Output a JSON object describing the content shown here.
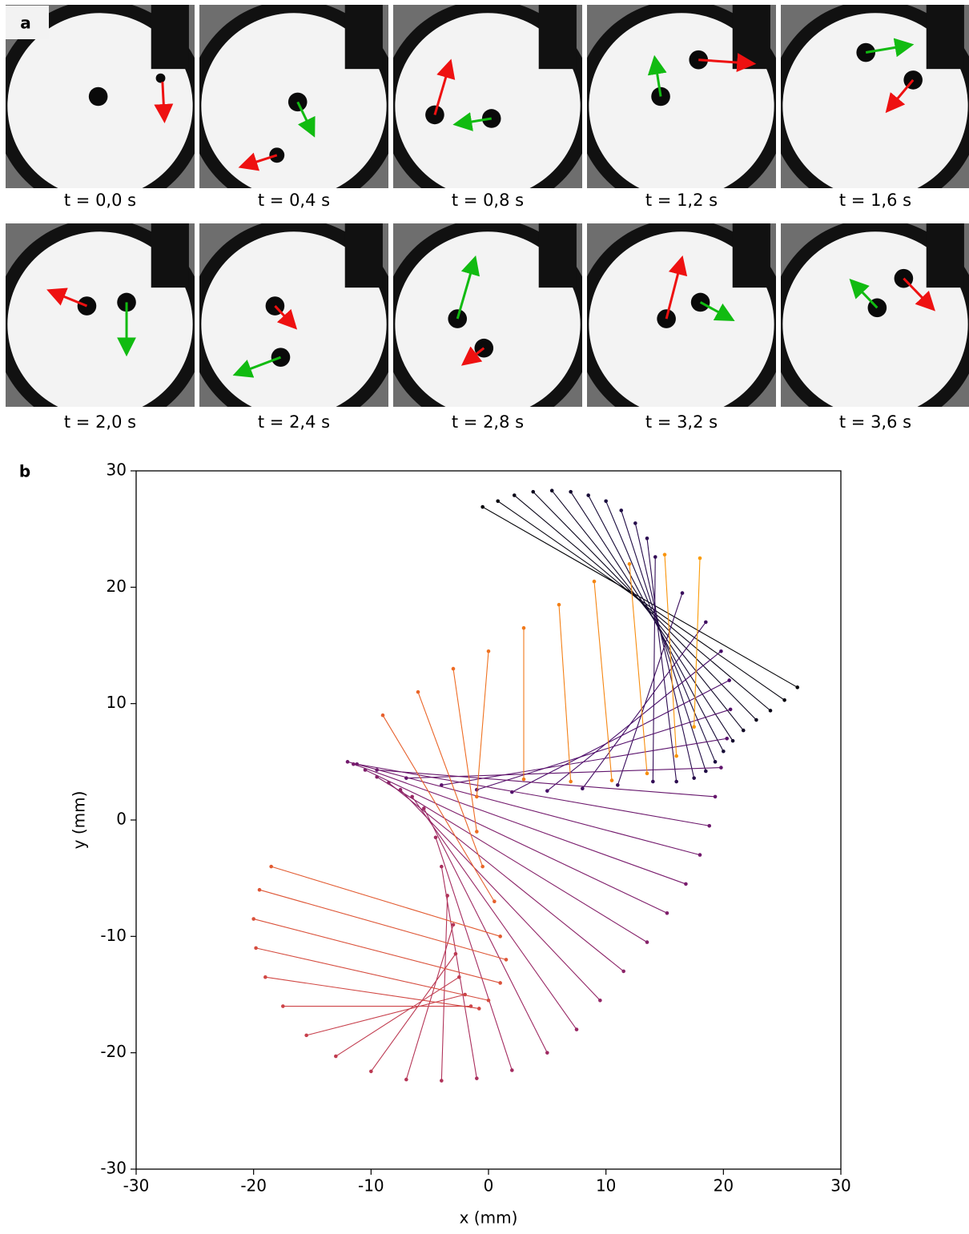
{
  "panel_labels": [
    "a",
    "b"
  ],
  "panel_a": {
    "frames": [
      "t = 0,0 s",
      "t = 0,4 s",
      "t = 0,8 s",
      "t = 1,2 s",
      "t = 1,6 s",
      "t = 2,0 s",
      "t = 2,4 s",
      "t = 2,8 s",
      "t = 3,2 s",
      "t = 3,6 s"
    ]
  },
  "chart_data": {
    "type": "pair-segments",
    "xlabel": "x (mm)",
    "ylabel": "y (mm)",
    "xlim": [
      -30,
      30
    ],
    "ylim": [
      -30,
      30
    ],
    "xticks": [
      -30,
      -20,
      -10,
      0,
      10,
      20,
      30
    ],
    "yticks": [
      -30,
      -20,
      -10,
      0,
      10,
      20,
      30
    ],
    "colormap": [
      "#000004",
      "#1b0c41",
      "#4a0c6b",
      "#781c6d",
      "#a52c60",
      "#cf4446",
      "#ed6925",
      "#fb9b06"
    ],
    "particle_a": {
      "x": [
        -0.5,
        0.8,
        2.2,
        3.8,
        5.4,
        7.0,
        8.5,
        10.0,
        11.3,
        12.5,
        13.5,
        14.2,
        16.5,
        18.5,
        19.8,
        20.5,
        20.6,
        20.3,
        19.8,
        19.3,
        18.8,
        18.0,
        16.8,
        15.2,
        13.5,
        11.5,
        9.5,
        7.5,
        5.0,
        2.0,
        -1.0,
        -4.0,
        -7.0,
        -10.0,
        -13.0,
        -15.5,
        -17.5,
        -19.0,
        -19.8,
        -20.0,
        -19.5,
        -18.5,
        -9.0,
        -6.0,
        -3.0,
        0.0,
        3.0,
        6.0,
        9.0,
        12.0,
        15.0,
        18.0
      ],
      "y": [
        26.9,
        27.4,
        27.9,
        28.2,
        28.3,
        28.2,
        27.9,
        27.4,
        26.6,
        25.5,
        24.2,
        22.6,
        19.5,
        17.0,
        14.5,
        12.0,
        9.5,
        7.0,
        4.5,
        2.0,
        -0.5,
        -3.0,
        -5.5,
        -8.0,
        -10.5,
        -13.0,
        -15.5,
        -18.0,
        -20.0,
        -21.5,
        -22.2,
        -22.4,
        -22.3,
        -21.6,
        -20.3,
        -18.5,
        -16.0,
        -13.5,
        -11.0,
        -8.5,
        -6.0,
        -4.0,
        9.0,
        11.0,
        13.0,
        14.5,
        16.5,
        18.5,
        20.5,
        22.0,
        22.8,
        22.5
      ]
    },
    "particle_b": {
      "x": [
        26.3,
        25.2,
        24.0,
        22.8,
        21.7,
        20.8,
        20.0,
        19.3,
        18.5,
        17.5,
        16.0,
        14.0,
        11.0,
        8.0,
        5.0,
        2.0,
        -1.0,
        -4.0,
        -7.0,
        -9.5,
        -11.2,
        -12.0,
        -11.5,
        -10.5,
        -9.5,
        -8.5,
        -7.5,
        -6.5,
        -5.5,
        -4.5,
        -4.0,
        -3.5,
        -3.0,
        -2.8,
        -2.5,
        -2.0,
        -1.5,
        -0.8,
        0.0,
        1.0,
        1.5,
        1.0,
        0.5,
        -0.5,
        -1.0,
        -1.0,
        3.0,
        7.0,
        10.5,
        13.5,
        16.0,
        17.5
      ],
      "y": [
        11.4,
        10.3,
        9.4,
        8.6,
        7.7,
        6.8,
        5.9,
        5.0,
        4.2,
        3.6,
        3.3,
        3.3,
        3.0,
        2.7,
        2.5,
        2.4,
        2.6,
        3.0,
        3.6,
        4.3,
        4.8,
        5.0,
        4.8,
        4.3,
        3.7,
        3.2,
        2.6,
        2.0,
        1.0,
        -1.5,
        -4.0,
        -6.5,
        -9.0,
        -11.5,
        -13.5,
        -15.0,
        -16.0,
        -16.2,
        -15.5,
        -14.0,
        -12.0,
        -10.0,
        -7.0,
        -4.0,
        -1.0,
        2.0,
        3.5,
        3.3,
        3.4,
        4.0,
        5.5,
        8.0
      ]
    }
  }
}
